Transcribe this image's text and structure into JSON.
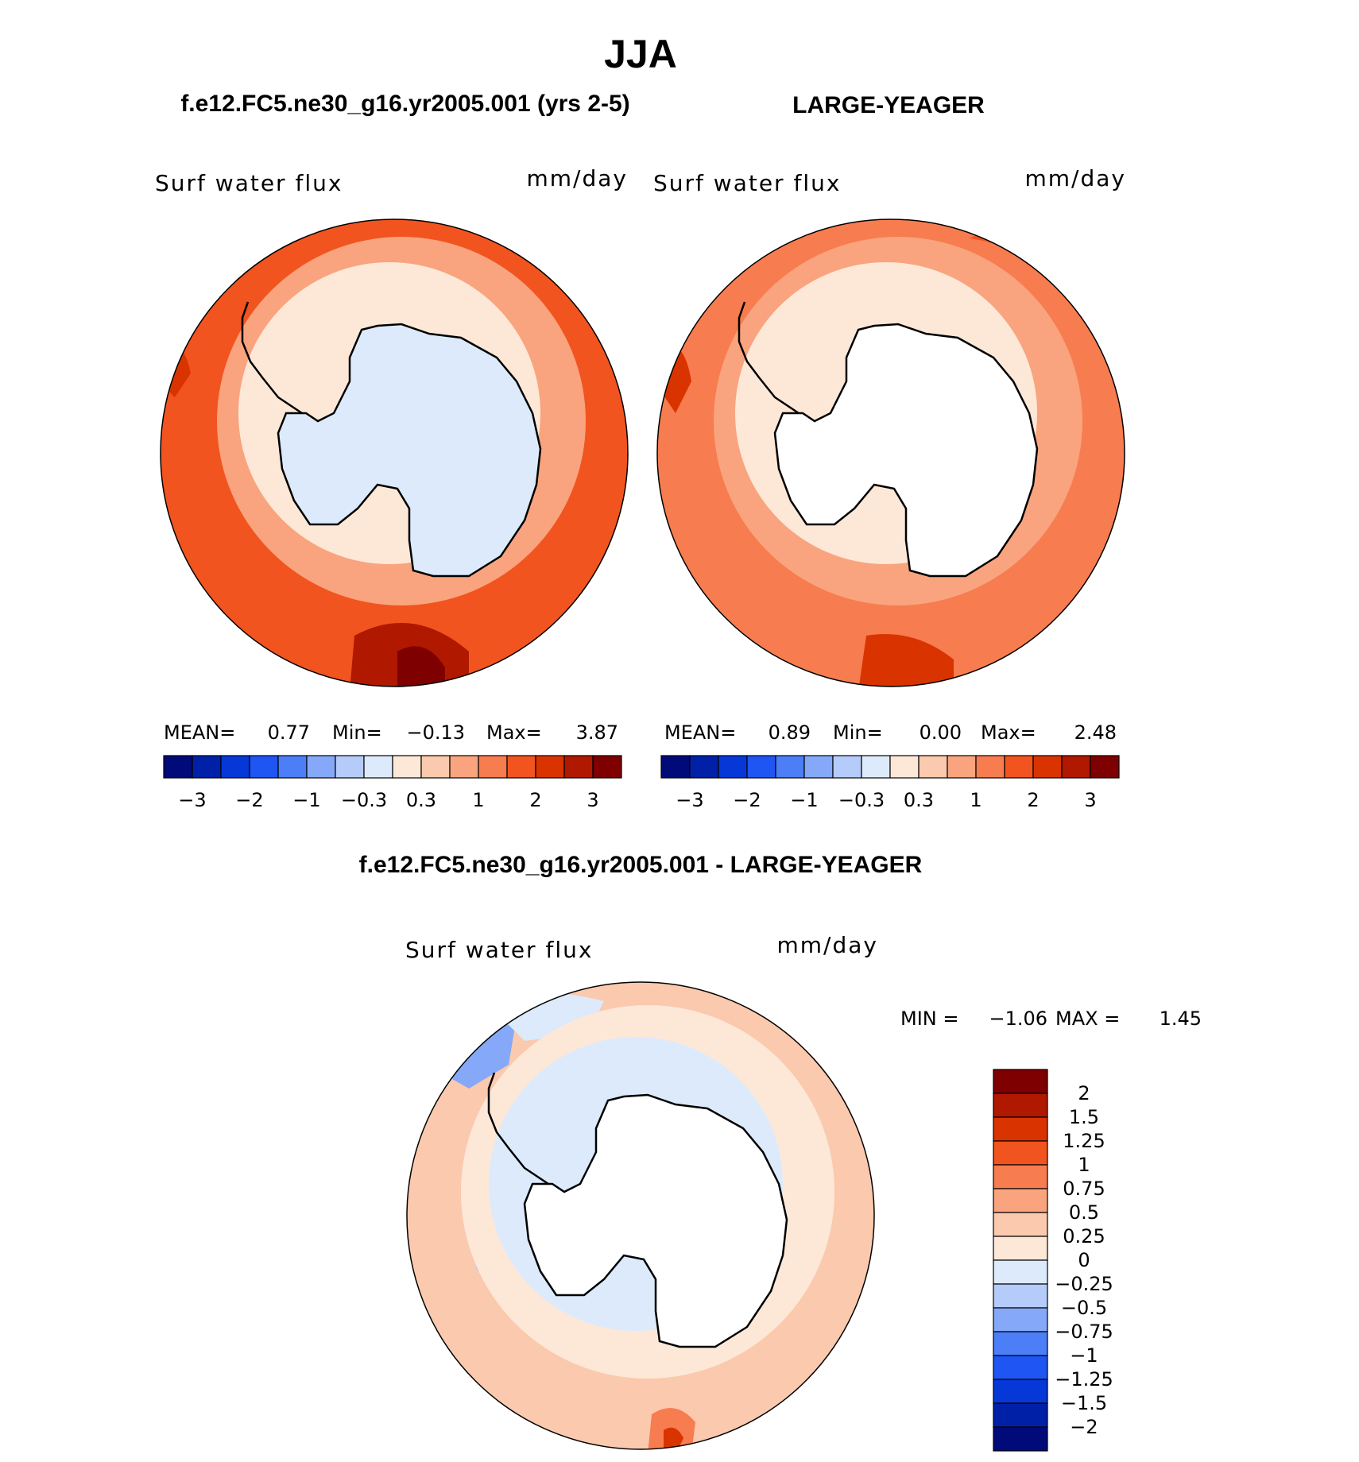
{
  "page": {
    "season_title": "JJA",
    "left_case_title": "f.e12.FC5.ne30_g16.yr2005.001 (yrs 2-5)",
    "right_case_title": "LARGE-YEAGER",
    "diff_title": "f.e12.FC5.ne30_g16.yr2005.001 - LARGE-YEAGER"
  },
  "chart_data": [
    {
      "type": "heatmap",
      "projection": "south-polar-stereographic",
      "variable_label": "Surf water flux",
      "units": "mm/day",
      "stats": {
        "mean_label": "MEAN=",
        "mean": "0.77",
        "min_label": "Min=",
        "min": "−0.13",
        "max_label": "Max=",
        "max": "3.87"
      },
      "contour_levels": [
        -3,
        -2.5,
        -2,
        -1.5,
        -1,
        -0.6,
        -0.3,
        0,
        0.3,
        0.6,
        1,
        1.5,
        2,
        2.5,
        3
      ],
      "colorbar_tick_labels": [
        "−3",
        "−2",
        "−1",
        "−0.3",
        "0.3",
        "1",
        "2",
        "3"
      ],
      "colors": [
        "#000a78",
        "#0020a8",
        "#0538d6",
        "#1f55f2",
        "#4b7ef7",
        "#86a8f8",
        "#b5ccfa",
        "#dceafb",
        "#fde8d8",
        "#fbc9ad",
        "#f9a47e",
        "#f77c4f",
        "#f2541f",
        "#d93400",
        "#b01800",
        "#7f0000"
      ],
      "zonal_pattern": {
        "land": "#dceafb",
        "coast_ring": "#fde8d8",
        "mid_ring": "#f9a47e",
        "outer_ring": "#f2541f",
        "hotspots": "#b01800"
      }
    },
    {
      "type": "heatmap",
      "projection": "south-polar-stereographic",
      "variable_label": "Surf water flux",
      "units": "mm/day",
      "stats": {
        "mean_label": "MEAN=",
        "mean": "0.89",
        "min_label": "Min=",
        "min": "0.00",
        "max_label": "Max=",
        "max": "2.48"
      },
      "contour_levels": [
        -3,
        -2.5,
        -2,
        -1.5,
        -1,
        -0.6,
        -0.3,
        0,
        0.3,
        0.6,
        1,
        1.5,
        2,
        2.5,
        3
      ],
      "colorbar_tick_labels": [
        "−3",
        "−2",
        "−1",
        "−0.3",
        "0.3",
        "1",
        "2",
        "3"
      ],
      "colors": [
        "#000a78",
        "#0020a8",
        "#0538d6",
        "#1f55f2",
        "#4b7ef7",
        "#86a8f8",
        "#b5ccfa",
        "#dceafb",
        "#fde8d8",
        "#fbc9ad",
        "#f9a47e",
        "#f77c4f",
        "#f2541f",
        "#d93400",
        "#b01800",
        "#7f0000"
      ],
      "zonal_pattern": {
        "land": "#ffffff",
        "coast_ring": "#fde8d8",
        "mid_ring": "#f9a47e",
        "outer_ring": "#f77c4f",
        "hotspots": "#d93400"
      }
    },
    {
      "type": "heatmap",
      "projection": "south-polar-stereographic",
      "variable_label": "Surf water flux",
      "units": "mm/day",
      "stats": {
        "min_label": "MIN =",
        "min": "−1.06",
        "max_label": "MAX =",
        "max": "1.45"
      },
      "contour_levels": [
        -2,
        -1.5,
        -1.25,
        -1,
        -0.75,
        -0.5,
        -0.25,
        0,
        0.25,
        0.5,
        0.75,
        1,
        1.25,
        1.5,
        2
      ],
      "colorbar_tick_labels": [
        "2",
        "1.5",
        "1.25",
        "1",
        "0.75",
        "0.5",
        "0.25",
        "0",
        "−0.25",
        "−0.5",
        "−0.75",
        "−1",
        "−1.25",
        "−1.5",
        "−2"
      ],
      "colors": [
        "#7f0000",
        "#b01800",
        "#d93400",
        "#f2541f",
        "#f77c4f",
        "#f9a47e",
        "#fbc9ad",
        "#fde8d8",
        "#dceafb",
        "#b5ccfa",
        "#86a8f8",
        "#4b7ef7",
        "#1f55f2",
        "#0538d6",
        "#0020a8",
        "#000a78"
      ],
      "zonal_pattern": {
        "land": "#ffffff",
        "coast_ring": "#dceafb",
        "mid_ring": "#fde8d8",
        "outer_ring": "#fbc9ad",
        "hotspots": "#f77c4f"
      }
    }
  ]
}
